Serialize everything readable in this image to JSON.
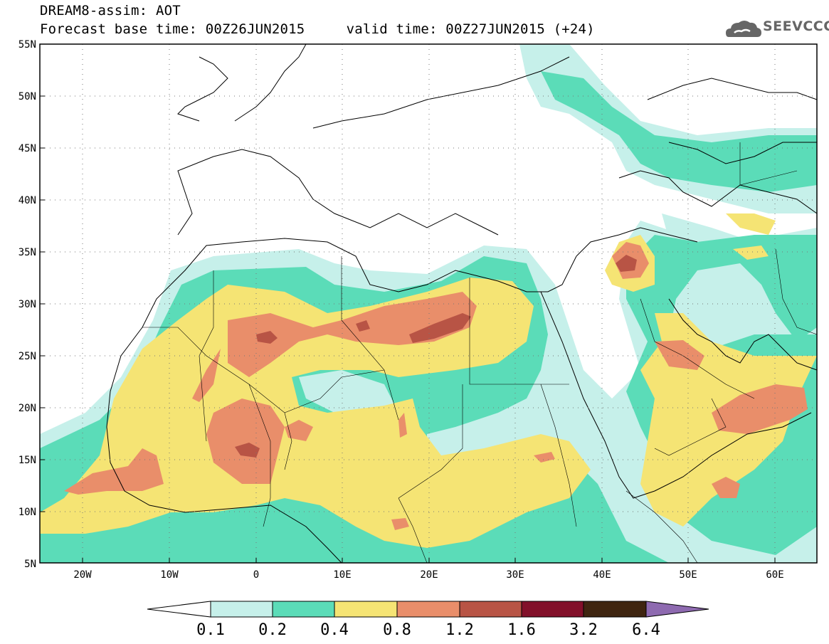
{
  "title": {
    "line1": "DREAM8-assim: AOT",
    "line2": "Forecast base time: 00Z26JUN2015     valid time: 00Z27JUN2015 (+24)"
  },
  "logo": {
    "text": "SEEVCCC",
    "icon": "cloud-icon"
  },
  "map": {
    "lon_range": [
      -25,
      65
    ],
    "lat_range": [
      5,
      55
    ],
    "lat_ticks": [
      "55N",
      "50N",
      "45N",
      "40N",
      "35N",
      "30N",
      "25N",
      "20N",
      "15N",
      "10N",
      "5N"
    ],
    "lon_ticks": [
      "20W",
      "10W",
      "0",
      "10E",
      "20E",
      "30E",
      "40E",
      "50E",
      "60E"
    ]
  },
  "colorbar": {
    "levels": [
      "0.1",
      "0.2",
      "0.4",
      "0.8",
      "1.2",
      "1.6",
      "3.2",
      "6.4"
    ],
    "colors": [
      "#c6f0ea",
      "#5bdcb8",
      "#f5e474",
      "#e98e6a",
      "#b85445",
      "#82102a",
      "#3f2510"
    ],
    "over_color": "#8e6ab0",
    "under_color": "#ffffff"
  },
  "colors": {
    "c01": "#c6f0ea",
    "c02": "#5bdcb8",
    "c04": "#f5e474",
    "c08": "#e98e6a",
    "c12": "#b85445"
  }
}
